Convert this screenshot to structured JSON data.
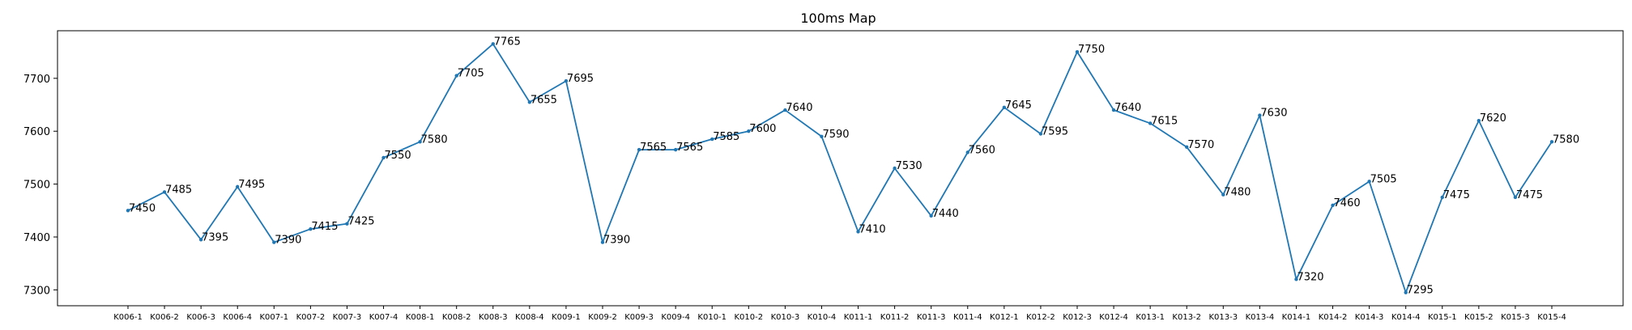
{
  "chart_data": {
    "type": "line",
    "title": "100ms Map",
    "xlabel": "",
    "ylabel": "",
    "ylim": [
      7270,
      7790
    ],
    "yticks": [
      7300,
      7400,
      7500,
      7600,
      7700
    ],
    "grid": false,
    "color": "#1f77b4",
    "categories": [
      "K006-1",
      "K006-2",
      "K006-3",
      "K006-4",
      "K007-1",
      "K007-2",
      "K007-3",
      "K007-4",
      "K008-1",
      "K008-2",
      "K008-3",
      "K008-4",
      "K009-1",
      "K009-2",
      "K009-3",
      "K009-4",
      "K010-1",
      "K010-2",
      "K010-3",
      "K010-4",
      "K011-1",
      "K011-2",
      "K011-3",
      "K011-4",
      "K012-1",
      "K012-2",
      "K012-3",
      "K012-4",
      "K013-1",
      "K013-2",
      "K013-3",
      "K013-4",
      "K014-1",
      "K014-2",
      "K014-3",
      "K014-4",
      "K015-1",
      "K015-2",
      "K015-3",
      "K015-4"
    ],
    "values": [
      7450,
      7485,
      7395,
      7495,
      7390,
      7415,
      7425,
      7550,
      7580,
      7705,
      7765,
      7655,
      7695,
      7390,
      7565,
      7565,
      7585,
      7600,
      7640,
      7590,
      7410,
      7530,
      7440,
      7560,
      7645,
      7595,
      7750,
      7640,
      7615,
      7570,
      7480,
      7630,
      7320,
      7460,
      7505,
      7295,
      7475,
      7620,
      7475,
      7580
    ]
  }
}
